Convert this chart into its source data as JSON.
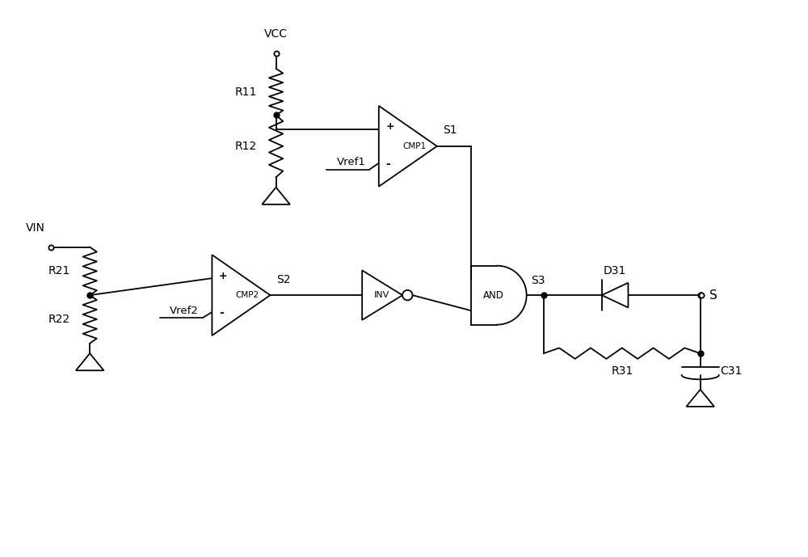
{
  "bg_color": "#ffffff",
  "line_color": "#000000",
  "line_width": 1.3,
  "dot_size": 5,
  "figsize": [
    10.0,
    6.89
  ],
  "dpi": 100,
  "xlim": [
    0,
    10
  ],
  "ylim": [
    0,
    6.89
  ]
}
